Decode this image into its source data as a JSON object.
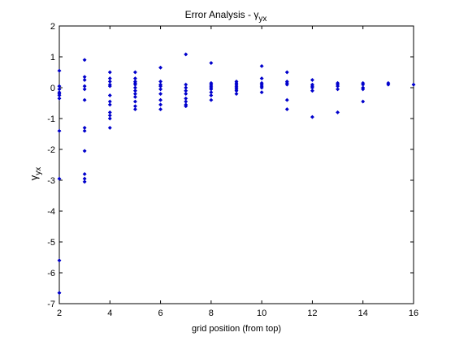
{
  "chart_data": {
    "type": "scatter",
    "title_main": "Error Analysis - γ",
    "title_sub": "yx",
    "xlabel": "grid position (from top)",
    "ylabel_main": "γ",
    "ylabel_sub": "yx",
    "xlim": [
      2,
      16
    ],
    "ylim": [
      -7,
      2
    ],
    "xticks": [
      2,
      4,
      6,
      8,
      10,
      12,
      14,
      16
    ],
    "yticks": [
      2,
      1,
      0,
      -1,
      -2,
      -3,
      -4,
      -5,
      -6,
      -7
    ],
    "xtick_labels": [
      "2",
      "4",
      "6",
      "8",
      "10",
      "12",
      "14",
      "16"
    ],
    "ytick_labels": [
      "2",
      "1",
      "0",
      "-1",
      "-2",
      "-3",
      "-4",
      "-5",
      "-6",
      "-7"
    ],
    "grid": false,
    "color": "#0000cc",
    "series": [
      {
        "points": [
          [
            2,
            0.55
          ],
          [
            2,
            0.05
          ],
          [
            2,
            -0.05
          ],
          [
            2,
            -0.15
          ],
          [
            2,
            -0.2
          ],
          [
            2,
            -0.25
          ],
          [
            2,
            -0.35
          ],
          [
            2,
            -1.4
          ],
          [
            2,
            -2.95
          ],
          [
            2,
            -5.6
          ],
          [
            2,
            -6.65
          ],
          [
            3,
            0.9
          ],
          [
            3,
            0.35
          ],
          [
            3,
            0.25
          ],
          [
            3,
            0.05
          ],
          [
            3,
            -0.05
          ],
          [
            3,
            -0.4
          ],
          [
            3,
            -1.3
          ],
          [
            3,
            -1.4
          ],
          [
            3,
            -2.05
          ],
          [
            3,
            -2.8
          ],
          [
            3,
            -2.95
          ],
          [
            3,
            -3.05
          ],
          [
            4,
            0.5
          ],
          [
            4,
            0.3
          ],
          [
            4,
            0.2
          ],
          [
            4,
            0.1
          ],
          [
            4,
            0.05
          ],
          [
            4,
            -0.25
          ],
          [
            4,
            -0.45
          ],
          [
            4,
            -0.55
          ],
          [
            4,
            -0.8
          ],
          [
            4,
            -0.9
          ],
          [
            4,
            -1.0
          ],
          [
            4,
            -1.3
          ],
          [
            5,
            0.5
          ],
          [
            5,
            0.3
          ],
          [
            5,
            0.2
          ],
          [
            5,
            0.15
          ],
          [
            5,
            0.1
          ],
          [
            5,
            0.0
          ],
          [
            5,
            -0.1
          ],
          [
            5,
            -0.2
          ],
          [
            5,
            -0.3
          ],
          [
            5,
            -0.45
          ],
          [
            5,
            -0.6
          ],
          [
            5,
            -0.7
          ],
          [
            6,
            0.65
          ],
          [
            6,
            0.2
          ],
          [
            6,
            0.1
          ],
          [
            6,
            0.05
          ],
          [
            6,
            -0.05
          ],
          [
            6,
            -0.2
          ],
          [
            6,
            -0.4
          ],
          [
            6,
            -0.55
          ],
          [
            6,
            -0.7
          ],
          [
            7,
            1.08
          ],
          [
            7,
            0.1
          ],
          [
            7,
            0.0
          ],
          [
            7,
            -0.1
          ],
          [
            7,
            -0.2
          ],
          [
            7,
            -0.35
          ],
          [
            7,
            -0.45
          ],
          [
            7,
            -0.55
          ],
          [
            7,
            -0.6
          ],
          [
            8,
            0.8
          ],
          [
            8,
            0.15
          ],
          [
            8,
            0.1
          ],
          [
            8,
            0.05
          ],
          [
            8,
            0.0
          ],
          [
            8,
            -0.05
          ],
          [
            8,
            -0.15
          ],
          [
            8,
            -0.25
          ],
          [
            8,
            -0.4
          ],
          [
            9,
            0.2
          ],
          [
            9,
            0.15
          ],
          [
            9,
            0.1
          ],
          [
            9,
            0.05
          ],
          [
            9,
            0.0
          ],
          [
            9,
            -0.05
          ],
          [
            9,
            -0.1
          ],
          [
            9,
            -0.2
          ],
          [
            10,
            0.7
          ],
          [
            10,
            0.3
          ],
          [
            10,
            0.15
          ],
          [
            10,
            0.1
          ],
          [
            10,
            0.05
          ],
          [
            10,
            0.0
          ],
          [
            10,
            -0.15
          ],
          [
            11,
            0.5
          ],
          [
            11,
            0.2
          ],
          [
            11,
            0.15
          ],
          [
            11,
            0.1
          ],
          [
            11,
            -0.4
          ],
          [
            11,
            -0.7
          ],
          [
            12,
            0.25
          ],
          [
            12,
            0.1
          ],
          [
            12,
            0.05
          ],
          [
            12,
            0.0
          ],
          [
            12,
            -0.1
          ],
          [
            12,
            -0.95
          ],
          [
            13,
            0.15
          ],
          [
            13,
            0.1
          ],
          [
            13,
            0.05
          ],
          [
            13,
            -0.05
          ],
          [
            13,
            -0.8
          ],
          [
            14,
            0.15
          ],
          [
            14,
            0.1
          ],
          [
            14,
            0.0
          ],
          [
            14,
            -0.05
          ],
          [
            14,
            -0.45
          ],
          [
            15,
            0.15
          ],
          [
            15,
            0.1
          ],
          [
            16,
            0.1
          ]
        ]
      }
    ]
  }
}
